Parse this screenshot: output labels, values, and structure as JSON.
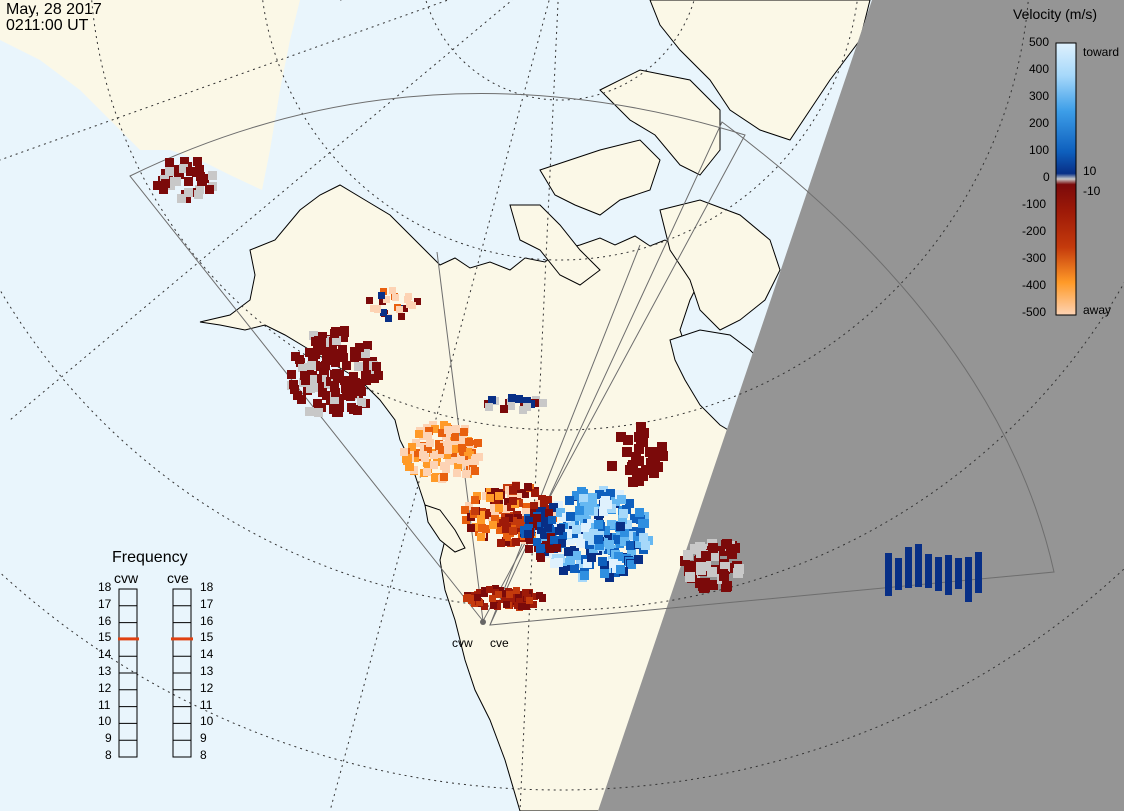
{
  "timestamp": {
    "date": "May, 28 2017",
    "time": "0211:00 UT"
  },
  "velocity_legend": {
    "title": "Velocity (m/s)",
    "scale_labels": [
      "500",
      "400",
      "300",
      "200",
      "100",
      "0",
      "-100",
      "-200",
      "-300",
      "-400",
      "-500"
    ],
    "threshold_pos": "10",
    "threshold_neg": "-10",
    "toward_label": "toward",
    "away_label": "away",
    "colors": {
      "toward": [
        "#dff1fd",
        "#a6d8fa",
        "#66b8f2",
        "#2f8fe0",
        "#0e5fbd",
        "#082f86"
      ],
      "away": [
        "#7b0a0a",
        "#9e1a08",
        "#c43a0c",
        "#e8600f",
        "#ff9a28",
        "#fdd3b4"
      ],
      "ground_scatter": "#c8c8c8"
    }
  },
  "frequency_legend": {
    "title": "Frequency",
    "radars": [
      {
        "name": "cvw",
        "frequency_mhz": 15
      },
      {
        "name": "cve",
        "frequency_mhz": 15
      }
    ],
    "scale": [
      "18",
      "17",
      "16",
      "15",
      "14",
      "13",
      "12",
      "11",
      "10",
      "9",
      "8"
    ],
    "marker_color": "#e04010"
  },
  "radar_sites": [
    {
      "name": "cvw",
      "label": "cvw"
    },
    {
      "name": "cve",
      "label": "cve"
    }
  ],
  "map_colors": {
    "ocean": "#e9f5fc",
    "land": "#fbf8e7",
    "night": "#959595",
    "coast": "#000000",
    "fov": "#6e6e6e"
  }
}
